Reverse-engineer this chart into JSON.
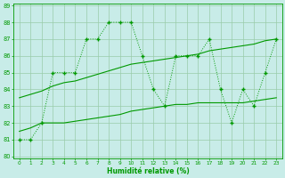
{
  "x": [
    0,
    1,
    2,
    3,
    4,
    5,
    6,
    7,
    8,
    9,
    10,
    11,
    12,
    13,
    14,
    15,
    16,
    17,
    18,
    19,
    20,
    21,
    22,
    23
  ],
  "line_jagged": [
    81,
    81,
    82,
    85,
    85,
    85,
    87,
    87,
    88,
    88,
    88,
    86,
    84,
    83,
    86,
    86,
    86,
    87,
    84,
    82,
    84,
    83,
    85,
    87
  ],
  "trend_upper": [
    83.5,
    83.7,
    83.9,
    84.2,
    84.4,
    84.5,
    84.7,
    84.9,
    85.1,
    85.3,
    85.5,
    85.6,
    85.7,
    85.8,
    85.9,
    86.0,
    86.1,
    86.3,
    86.4,
    86.5,
    86.6,
    86.7,
    86.9,
    87.0
  ],
  "trend_lower": [
    81.5,
    81.7,
    82.0,
    82.0,
    82.0,
    82.1,
    82.2,
    82.3,
    82.4,
    82.5,
    82.7,
    82.8,
    82.9,
    83.0,
    83.1,
    83.1,
    83.2,
    83.2,
    83.2,
    83.2,
    83.2,
    83.3,
    83.4,
    83.5
  ],
  "bg_color": "#c8ece8",
  "grid_color": "#99ccaa",
  "line_color": "#009900",
  "xlabel": "Humidité relative (%)",
  "ylim": [
    80,
    89
  ],
  "xlim": [
    -0.5,
    23.5
  ],
  "yticks": [
    80,
    81,
    82,
    83,
    84,
    85,
    86,
    87,
    88,
    89
  ],
  "xticks": [
    0,
    1,
    2,
    3,
    4,
    5,
    6,
    7,
    8,
    9,
    10,
    11,
    12,
    13,
    14,
    15,
    16,
    17,
    18,
    19,
    20,
    21,
    22,
    23
  ]
}
